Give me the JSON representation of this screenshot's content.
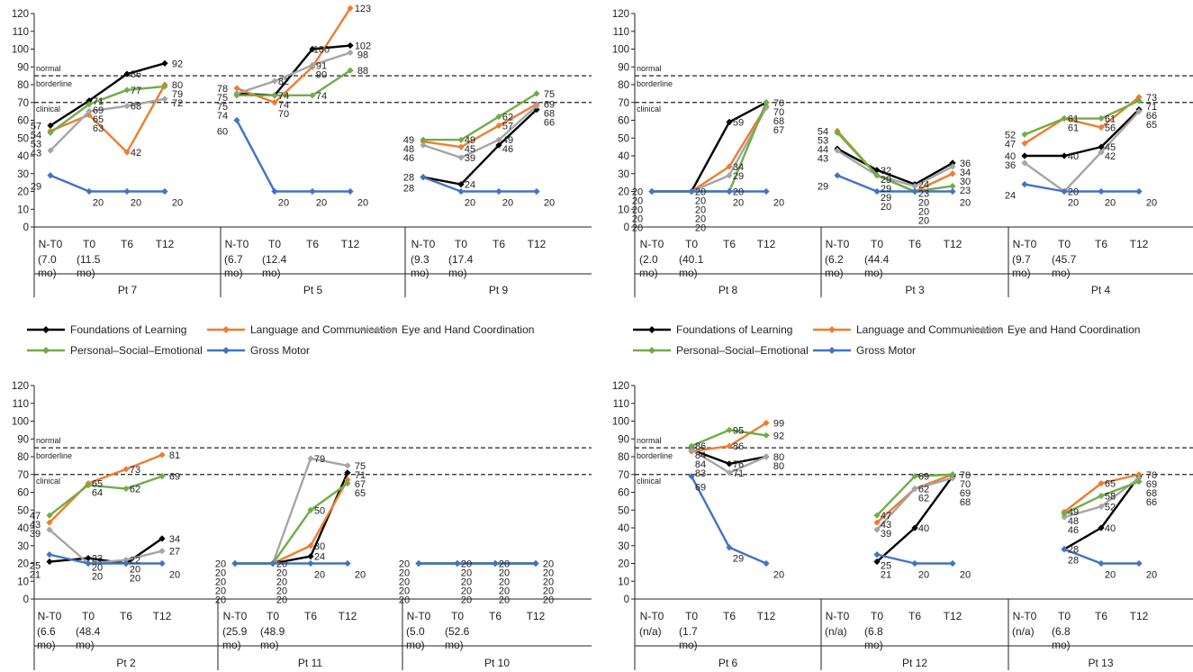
{
  "colors": {
    "Foundations of Learning": "#000000",
    "Language and Communication": "#ED7D31",
    "Eye and Hand Coordination": "#A5A5A5",
    "Personal–Social–Emotional": "#70AD47",
    "Gross Motor": "#4472C4"
  },
  "legend": [
    "Foundations of Learning",
    "Language and Communication",
    "Eye and Hand Coordination",
    "Personal–Social–Emotional",
    "Gross Motor"
  ],
  "chart_data": [
    {
      "type": "line",
      "title": "",
      "ylim": [
        0,
        120
      ],
      "yticks": [
        0,
        10,
        20,
        30,
        40,
        50,
        60,
        70,
        80,
        90,
        100,
        110,
        120
      ],
      "thresholds": [
        {
          "label": "normal",
          "value": 85
        },
        {
          "label": "borderline",
          "value": 85
        },
        {
          "label": "clinical",
          "value": 70
        }
      ],
      "categories": [
        "N-T0",
        "T0",
        "T6",
        "T12"
      ],
      "groups": [
        {
          "patient": "Pt 7",
          "sub": [
            "(7.0 mo)",
            "(11.5 mo)",
            "",
            ""
          ],
          "series": {
            "Foundations of Learning": [
              57,
              71,
              86,
              92
            ],
            "Language and Communication": [
              54,
              63,
              42,
              80
            ],
            "Eye and Hand Coordination": [
              43,
              65,
              68,
              72
            ],
            "Personal–Social–Emotional": [
              53,
              69,
              77,
              79
            ],
            "Gross Motor": [
              29,
              20,
              20,
              20
            ]
          }
        },
        {
          "patient": "Pt 5",
          "sub": [
            "(6.7 mo)",
            "(12.4 mo)",
            "",
            ""
          ],
          "series": {
            "Foundations of Learning": [
              75,
              74,
              100,
              102
            ],
            "Language and Communication": [
              78,
              70,
              90,
              123
            ],
            "Eye and Hand Coordination": [
              75,
              82,
              91,
              98
            ],
            "Personal–Social–Emotional": [
              74,
              74,
              74,
              88
            ],
            "Gross Motor": [
              60,
              20,
              20,
              20
            ]
          }
        },
        {
          "patient": "Pt 9",
          "sub": [
            "(9.3 mo)",
            "(17.4 mo)",
            "",
            ""
          ],
          "series": {
            "Foundations of Learning": [
              28,
              24,
              46,
              66
            ],
            "Language and Communication": [
              48,
              45,
              57,
              69
            ],
            "Eye and Hand Coordination": [
              46,
              39,
              49,
              68
            ],
            "Personal–Social–Emotional": [
              49,
              49,
              62,
              75
            ],
            "Gross Motor": [
              28,
              20,
              20,
              20
            ]
          }
        }
      ]
    },
    {
      "type": "line",
      "title": "",
      "ylim": [
        0,
        120
      ],
      "yticks": [
        0,
        10,
        20,
        30,
        40,
        50,
        60,
        70,
        80,
        90,
        100,
        110,
        120
      ],
      "thresholds": [
        {
          "label": "normal",
          "value": 85
        },
        {
          "label": "borderline",
          "value": 85
        },
        {
          "label": "clinical",
          "value": 70
        }
      ],
      "categories": [
        "N-T0",
        "T0",
        "T6",
        "T12"
      ],
      "groups": [
        {
          "patient": "Pt 8",
          "sub": [
            "(2.0 mo)",
            "(40.1 mo)",
            "",
            ""
          ],
          "series": {
            "Foundations of Learning": [
              20,
              20,
              59,
              70
            ],
            "Language and Communication": [
              20,
              20,
              34,
              68
            ],
            "Eye and Hand Coordination": [
              20,
              20,
              29,
              67
            ],
            "Personal–Social–Emotional": [
              20,
              20,
              20,
              70
            ],
            "Gross Motor": [
              20,
              20,
              20,
              20
            ]
          }
        },
        {
          "patient": "Pt 3",
          "sub": [
            "(6.2 mo)",
            "(44.4 mo)",
            "",
            ""
          ],
          "series": {
            "Foundations of Learning": [
              44,
              32,
              24,
              36
            ],
            "Language and Communication": [
              54,
              29,
              20,
              30
            ],
            "Eye and Hand Coordination": [
              43,
              29,
              23,
              34
            ],
            "Personal–Social–Emotional": [
              53,
              29,
              20,
              23
            ],
            "Gross Motor": [
              29,
              20,
              20,
              20
            ]
          }
        },
        {
          "patient": "Pt 4",
          "sub": [
            "(9.7 mo)",
            "(45.7 mo)",
            "",
            ""
          ],
          "series": {
            "Foundations of Learning": [
              40,
              40,
              45,
              66
            ],
            "Language and Communication": [
              47,
              61,
              56,
              73
            ],
            "Eye and Hand Coordination": [
              36,
              20,
              42,
              65
            ],
            "Personal–Social–Emotional": [
              52,
              61,
              61,
              71
            ],
            "Gross Motor": [
              24,
              20,
              20,
              20
            ]
          }
        }
      ]
    },
    {
      "type": "line",
      "title": "",
      "ylim": [
        0,
        120
      ],
      "yticks": [
        0,
        10,
        20,
        30,
        40,
        50,
        60,
        70,
        80,
        90,
        100,
        110,
        120
      ],
      "thresholds": [
        {
          "label": "normal",
          "value": 85
        },
        {
          "label": "borderline",
          "value": 85
        },
        {
          "label": "clinical",
          "value": 70
        }
      ],
      "categories": [
        "N-T0",
        "T0",
        "T6",
        "T12"
      ],
      "groups": [
        {
          "patient": "Pt 2",
          "sub": [
            "(6.6 mo)",
            "(48.4 mo)",
            "",
            ""
          ],
          "series": {
            "Foundations of Learning": [
              21,
              23,
              20,
              34
            ],
            "Language and Communication": [
              43,
              65,
              73,
              81
            ],
            "Eye and Hand Coordination": [
              39,
              20,
              22,
              27
            ],
            "Personal–Social–Emotional": [
              47,
              64,
              62,
              69
            ],
            "Gross Motor": [
              25,
              20,
              20,
              20
            ]
          }
        },
        {
          "patient": "Pt 11",
          "sub": [
            "(25.9 mo)",
            "(48.9 mo)",
            "",
            ""
          ],
          "series": {
            "Foundations of Learning": [
              20,
              20,
              24,
              71
            ],
            "Language and Communication": [
              20,
              20,
              30,
              67
            ],
            "Eye and Hand Coordination": [
              20,
              20,
              79,
              75
            ],
            "Personal–Social–Emotional": [
              20,
              20,
              50,
              65
            ],
            "Gross Motor": [
              20,
              20,
              20,
              20
            ]
          }
        },
        {
          "patient": "Pt 10",
          "sub": [
            "(5.0 mo)",
            "(52.6 mo)",
            "",
            ""
          ],
          "series": {
            "Foundations of Learning": [
              20,
              20,
              20,
              20
            ],
            "Language and Communication": [
              20,
              20,
              20,
              20
            ],
            "Eye and Hand Coordination": [
              20,
              20,
              20,
              20
            ],
            "Personal–Social–Emotional": [
              20,
              20,
              20,
              20
            ],
            "Gross Motor": [
              20,
              20,
              20,
              20
            ]
          }
        }
      ]
    },
    {
      "type": "line",
      "title": "",
      "ylim": [
        0,
        120
      ],
      "yticks": [
        0,
        10,
        20,
        30,
        40,
        50,
        60,
        70,
        80,
        90,
        100,
        110,
        120
      ],
      "thresholds": [
        {
          "label": "normal",
          "value": 85
        },
        {
          "label": "borderline",
          "value": 85
        },
        {
          "label": "clinical",
          "value": 70
        }
      ],
      "categories": [
        "N-T0",
        "T0",
        "T6",
        "T12"
      ],
      "groups": [
        {
          "patient": "Pt 6",
          "sub": [
            "(n/a)",
            "(1.7 mo)",
            "",
            ""
          ],
          "series": {
            "Foundations of Learning": [
              null,
              84,
              76,
              80
            ],
            "Language and Communication": [
              null,
              83,
              86,
              99
            ],
            "Eye and Hand Coordination": [
              null,
              84,
              71,
              80
            ],
            "Personal–Social–Emotional": [
              null,
              86,
              95,
              92
            ],
            "Gross Motor": [
              null,
              69,
              29,
              20
            ]
          }
        },
        {
          "patient": "Pt 12",
          "sub": [
            "(n/a)",
            "(6.8 mo)",
            "",
            ""
          ],
          "series": {
            "Foundations of Learning": [
              null,
              21,
              40,
              69
            ],
            "Language and Communication": [
              null,
              43,
              62,
              70
            ],
            "Eye and Hand Coordination": [
              null,
              39,
              62,
              68
            ],
            "Personal–Social–Emotional": [
              null,
              47,
              69,
              70
            ],
            "Gross Motor": [
              null,
              25,
              20,
              20
            ]
          }
        },
        {
          "patient": "Pt 13",
          "sub": [
            "(n/a)",
            "(6.8 mo)",
            "",
            ""
          ],
          "series": {
            "Foundations of Learning": [
              null,
              28,
              40,
              69
            ],
            "Language and Communication": [
              null,
              49,
              65,
              70
            ],
            "Eye and Hand Coordination": [
              null,
              46,
              52,
              68
            ],
            "Personal–Social–Emotional": [
              null,
              48,
              58,
              66
            ],
            "Gross Motor": [
              null,
              28,
              20,
              20
            ]
          }
        }
      ]
    }
  ]
}
